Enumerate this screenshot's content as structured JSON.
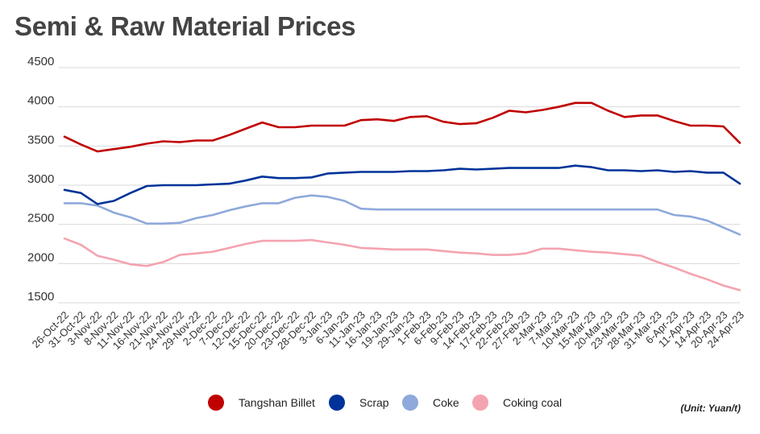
{
  "title": "Semi & Raw Material Prices",
  "unit_note": "(Unit: Yuan/t)",
  "colors": {
    "billet": "#c00000",
    "scrap": "#003399",
    "coke": "#8ea9db",
    "coking_coal": "#f4a3b0",
    "grid": "#d9d9d9",
    "text": "#333333"
  },
  "legend": [
    {
      "label": "Tangshan Billet",
      "color": "#c00000"
    },
    {
      "label": "Scrap",
      "color": "#003399"
    },
    {
      "label": "Coke",
      "color": "#8ea9db"
    },
    {
      "label": "Coking coal",
      "color": "#f4a3b0"
    }
  ],
  "chart_data": {
    "type": "line",
    "title": "Semi & Raw Material Prices",
    "xlabel": "",
    "ylabel": "",
    "ylim": [
      1500,
      4500
    ],
    "yticks": [
      1500,
      2000,
      2500,
      3000,
      3500,
      4000,
      4500
    ],
    "grid": true,
    "legend_position": "bottom",
    "categories": [
      "26-Oct-22",
      "31-Oct-22",
      "3-Nov-22",
      "8-Nov-22",
      "11-Nov-22",
      "16-Nov-22",
      "21-Nov-22",
      "24-Nov-22",
      "29-Nov-22",
      "2-Dec-22",
      "7-Dec-22",
      "12-Dec-22",
      "15-Dec-22",
      "20-Dec-22",
      "23-Dec-22",
      "28-Dec-22",
      "3-Jan-23",
      "6-Jan-23",
      "11-Jan-23",
      "16-Jan-23",
      "19-Jan-23",
      "29-Jan-23",
      "1-Feb-23",
      "6-Feb-23",
      "9-Feb-23",
      "14-Feb-23",
      "17-Feb-23",
      "22-Feb-23",
      "27-Feb-23",
      "2-Mar-23",
      "7-Mar-23",
      "10-Mar-23",
      "15-Mar-23",
      "20-Mar-23",
      "23-Mar-23",
      "28-Mar-23",
      "31-Mar-23",
      "6-Apr-23",
      "11-Apr-23",
      "14-Apr-23",
      "20-Apr-23",
      "24-Apr-23"
    ],
    "series": [
      {
        "name": "Tangshan Billet",
        "values": [
          3620,
          3520,
          3430,
          3460,
          3490,
          3530,
          3560,
          3550,
          3570,
          3570,
          3640,
          3720,
          3800,
          3740,
          3740,
          3760,
          3760,
          3760,
          3830,
          3840,
          3820,
          3870,
          3880,
          3810,
          3780,
          3790,
          3860,
          3950,
          3930,
          3960,
          4000,
          4050,
          4050,
          3950,
          3870,
          3890,
          3890,
          3820,
          3760,
          3760,
          3750,
          3540
        ]
      },
      {
        "name": "Scrap",
        "values": [
          2940,
          2900,
          2760,
          2800,
          2900,
          2990,
          3000,
          3000,
          3000,
          3010,
          3020,
          3060,
          3110,
          3090,
          3090,
          3100,
          3150,
          3160,
          3170,
          3170,
          3170,
          3180,
          3180,
          3190,
          3210,
          3200,
          3210,
          3220,
          3220,
          3220,
          3220,
          3250,
          3230,
          3190,
          3190,
          3180,
          3190,
          3170,
          3180,
          3160,
          3160,
          3020
        ]
      },
      {
        "name": "Coke",
        "values": [
          2770,
          2770,
          2740,
          2650,
          2590,
          2510,
          2510,
          2520,
          2580,
          2620,
          2680,
          2730,
          2770,
          2770,
          2840,
          2870,
          2850,
          2800,
          2700,
          2690,
          2690,
          2690,
          2690,
          2690,
          2690,
          2690,
          2690,
          2690,
          2690,
          2690,
          2690,
          2690,
          2690,
          2690,
          2690,
          2690,
          2690,
          2620,
          2600,
          2550,
          2460,
          2370
        ]
      },
      {
        "name": "Coking coal",
        "values": [
          2320,
          2240,
          2100,
          2050,
          1990,
          1970,
          2020,
          2110,
          2130,
          2150,
          2200,
          2250,
          2290,
          2290,
          2290,
          2300,
          2270,
          2240,
          2200,
          2190,
          2180,
          2180,
          2180,
          2160,
          2140,
          2130,
          2110,
          2110,
          2130,
          2190,
          2190,
          2170,
          2150,
          2140,
          2120,
          2100,
          2020,
          1950,
          1870,
          1800,
          1720,
          1660
        ]
      }
    ]
  }
}
